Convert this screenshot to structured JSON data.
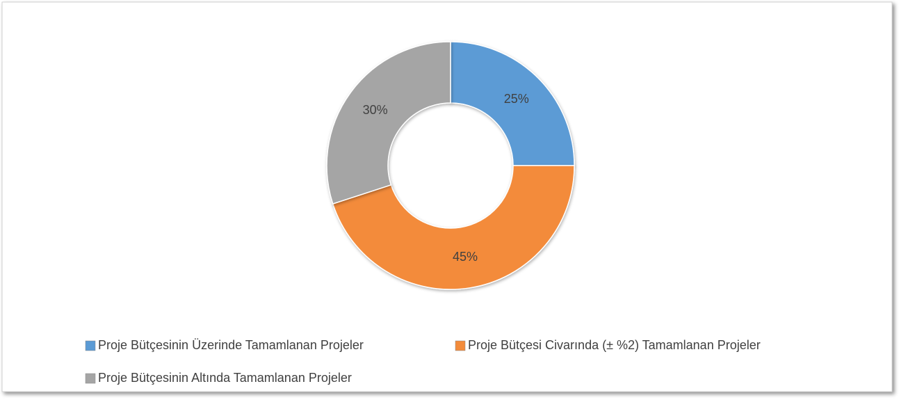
{
  "chart_data": {
    "type": "doughnut",
    "categories": [
      "Proje Bütçesinin Üzerinde Tamamlanan Projeler",
      "Proje Bütçesi Civarında (± %2) Tamamlanan Projeler",
      "Proje Bütçesinin Altında Tamamlanan Projeler"
    ],
    "values": [
      25,
      45,
      30
    ],
    "value_labels": [
      "25%",
      "45%",
      "30%"
    ],
    "colors": [
      "#5b9bd5",
      "#f38b3a",
      "#a5a5a5"
    ],
    "legend": "bottom"
  }
}
